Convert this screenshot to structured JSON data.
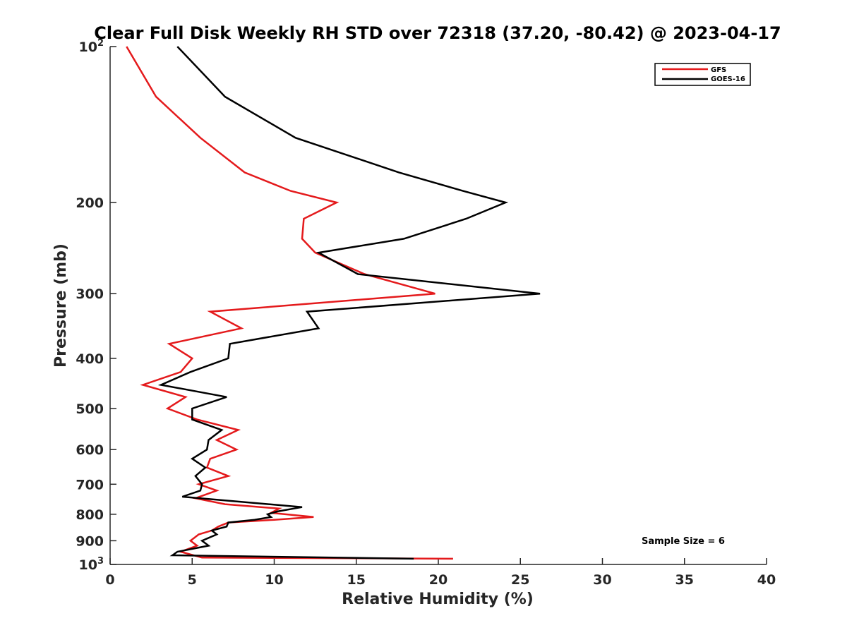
{
  "chart_data": {
    "type": "line",
    "title": "Clear Full Disk Weekly RH STD over 72318 (37.20, -80.42) @ 2023-04-17",
    "xlabel": "Relative Humidity (%)",
    "ylabel": "Pressure (mb)",
    "xlim": [
      0,
      40
    ],
    "ylim": [
      100,
      1000
    ],
    "y_scale": "log",
    "y_reversed": true,
    "x_ticks": [
      "0",
      "5",
      "10",
      "15",
      "20",
      "25",
      "30",
      "35",
      "40"
    ],
    "y_ticks": [
      {
        "value": 100,
        "label": "10",
        "sup": "2"
      },
      {
        "value": 200,
        "label": "200"
      },
      {
        "value": 300,
        "label": "300"
      },
      {
        "value": 400,
        "label": "400"
      },
      {
        "value": 500,
        "label": "500"
      },
      {
        "value": 600,
        "label": "600"
      },
      {
        "value": 700,
        "label": "700"
      },
      {
        "value": 800,
        "label": "800"
      },
      {
        "value": 900,
        "label": "900"
      },
      {
        "value": 1000,
        "label": "10",
        "sup": "3"
      }
    ],
    "grid": false,
    "legend_position": "top-right",
    "annotation": "Sample Size = 6",
    "series": [
      {
        "name": "GFS",
        "color": "#e41a1c",
        "points": [
          [
            1.0,
            100
          ],
          [
            2.8,
            125
          ],
          [
            5.5,
            150
          ],
          [
            8.2,
            175
          ],
          [
            11.0,
            190
          ],
          [
            13.8,
            200
          ],
          [
            11.8,
            215
          ],
          [
            11.7,
            235
          ],
          [
            12.5,
            250
          ],
          [
            15.5,
            275
          ],
          [
            19.8,
            300
          ],
          [
            6.1,
            325
          ],
          [
            8.0,
            350
          ],
          [
            3.6,
            375
          ],
          [
            5.0,
            400
          ],
          [
            4.3,
            425
          ],
          [
            2.0,
            450
          ],
          [
            4.6,
            475
          ],
          [
            3.5,
            500
          ],
          [
            5.3,
            525
          ],
          [
            7.8,
            550
          ],
          [
            6.5,
            575
          ],
          [
            7.7,
            600
          ],
          [
            6.1,
            625
          ],
          [
            5.9,
            650
          ],
          [
            7.2,
            675
          ],
          [
            5.4,
            700
          ],
          [
            6.5,
            720
          ],
          [
            5.2,
            745
          ],
          [
            7.0,
            765
          ],
          [
            10.3,
            780
          ],
          [
            9.8,
            795
          ],
          [
            12.4,
            810
          ],
          [
            10.0,
            820
          ],
          [
            7.2,
            830
          ],
          [
            6.6,
            845
          ],
          [
            6.2,
            860
          ],
          [
            5.4,
            875
          ],
          [
            4.9,
            900
          ],
          [
            5.3,
            920
          ],
          [
            4.3,
            945
          ],
          [
            5.6,
            970
          ],
          [
            20.9,
            975
          ]
        ]
      },
      {
        "name": "GOES-16",
        "color": "#000000",
        "points": [
          [
            4.1,
            100
          ],
          [
            7.0,
            125
          ],
          [
            11.3,
            150
          ],
          [
            17.6,
            175
          ],
          [
            21.5,
            190
          ],
          [
            24.1,
            200
          ],
          [
            21.7,
            215
          ],
          [
            17.9,
            235
          ],
          [
            12.7,
            250
          ],
          [
            15.1,
            275
          ],
          [
            26.2,
            300
          ],
          [
            12.0,
            325
          ],
          [
            12.7,
            350
          ],
          [
            7.3,
            375
          ],
          [
            7.2,
            400
          ],
          [
            4.9,
            425
          ],
          [
            3.1,
            450
          ],
          [
            7.1,
            475
          ],
          [
            5.0,
            500
          ],
          [
            5.0,
            525
          ],
          [
            6.8,
            550
          ],
          [
            6.0,
            575
          ],
          [
            5.9,
            600
          ],
          [
            5.0,
            625
          ],
          [
            5.8,
            650
          ],
          [
            5.2,
            675
          ],
          [
            5.6,
            700
          ],
          [
            5.5,
            720
          ],
          [
            4.4,
            740
          ],
          [
            8.6,
            760
          ],
          [
            11.7,
            775
          ],
          [
            10.2,
            790
          ],
          [
            9.6,
            800
          ],
          [
            9.8,
            810
          ],
          [
            8.8,
            820
          ],
          [
            7.2,
            830
          ],
          [
            7.1,
            845
          ],
          [
            6.2,
            860
          ],
          [
            6.5,
            875
          ],
          [
            5.6,
            900
          ],
          [
            6.0,
            920
          ],
          [
            4.1,
            945
          ],
          [
            3.8,
            960
          ],
          [
            18.5,
            975
          ]
        ]
      }
    ]
  }
}
